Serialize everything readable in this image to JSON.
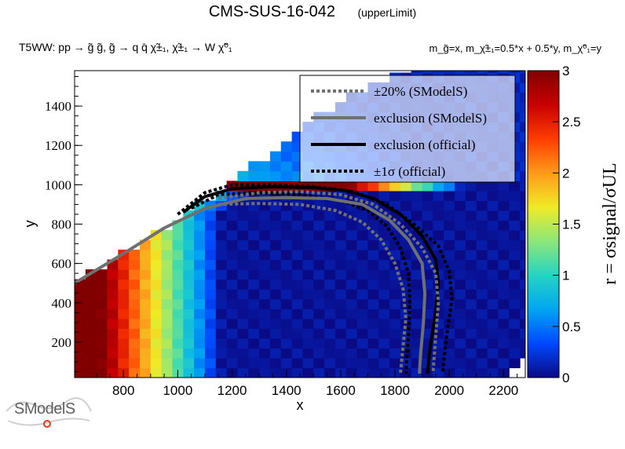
{
  "header": {
    "title": "CMS-SUS-16-042",
    "subtitle": "(upperLimit)",
    "process": "T5WW: pp  → g̃ g̃, g̃  → q q̄ χ̃±₁, χ̃±₁ → W χ̃⁰₁",
    "mass_config": "m_g̃=x, m_χ̃±₁=0.5*x + 0.5*y, m_χ̃⁰₁=y"
  },
  "logo": {
    "text": "SModelS"
  },
  "chart_data": {
    "type": "heatmap",
    "xlabel": "x",
    "ylabel": "y",
    "zlabel": "r = σsignal/σUL",
    "xlim": [
      620,
      2280
    ],
    "ylim": [
      20,
      1580
    ],
    "zlim": [
      0,
      3
    ],
    "xticks": [
      800,
      1000,
      1200,
      1400,
      1600,
      1800,
      2000,
      2200
    ],
    "yticks": [
      200,
      400,
      600,
      800,
      1000,
      1200,
      1400
    ],
    "zticks": [
      0,
      0.5,
      1,
      1.5,
      2,
      2.5,
      3
    ],
    "colorscale": [
      "#0a0a85",
      "#0048ff",
      "#00a6f2",
      "#26d4c2",
      "#8ce77a",
      "#f0ea26",
      "#ff9a1a",
      "#ff3c00",
      "#c80000",
      "#800000"
    ],
    "legend": {
      "placement": "top-right",
      "entries": [
        {
          "label": "±20% (SModelS)",
          "style": "dotted",
          "color": "#707070"
        },
        {
          "label": "exclusion (SModelS)",
          "style": "solid",
          "color": "#707070"
        },
        {
          "label": "exclusion (official)",
          "style": "solid",
          "color": "#000000"
        },
        {
          "label": "±1σ (official)",
          "style": "dotted",
          "color": "#000000"
        }
      ]
    },
    "grid": {
      "dx": 40,
      "dy": 50
    },
    "coverage": {
      "diagonal": [
        [
          620,
          500
        ],
        [
          1200,
          1000
        ],
        [
          1450,
          1300
        ],
        [
          1700,
          1500
        ],
        [
          1850,
          1580
        ]
      ],
      "xmax_by_y": [
        [
          20,
          2210
        ],
        [
          70,
          2250
        ],
        [
          120,
          2280
        ],
        [
          1580,
          2280
        ]
      ]
    },
    "contours": [
      {
        "name": "exclusion (official)",
        "style": "solid",
        "color": "#000000",
        "points": [
          [
            1020,
            860
          ],
          [
            1100,
            940
          ],
          [
            1200,
            980
          ],
          [
            1350,
            990
          ],
          [
            1500,
            985
          ],
          [
            1620,
            970
          ],
          [
            1720,
            930
          ],
          [
            1820,
            850
          ],
          [
            1900,
            740
          ],
          [
            1950,
            620
          ],
          [
            1960,
            500
          ],
          [
            1950,
            350
          ],
          [
            1930,
            180
          ],
          [
            1920,
            40
          ]
        ]
      },
      {
        "name": "+1σ (official)",
        "style": "dotted",
        "color": "#000000",
        "points": [
          [
            1000,
            850
          ],
          [
            1100,
            960
          ],
          [
            1200,
            1000
          ],
          [
            1350,
            1000
          ],
          [
            1500,
            990
          ],
          [
            1650,
            965
          ],
          [
            1770,
            900
          ],
          [
            1870,
            800
          ],
          [
            1960,
            690
          ],
          [
            2000,
            560
          ],
          [
            2010,
            420
          ],
          [
            1990,
            230
          ],
          [
            1975,
            40
          ]
        ]
      },
      {
        "name": "-1σ (official)",
        "style": "dotted",
        "color": "#000000",
        "points": [
          [
            1050,
            880
          ],
          [
            1150,
            950
          ],
          [
            1300,
            960
          ],
          [
            1450,
            950
          ],
          [
            1600,
            920
          ],
          [
            1700,
            870
          ],
          [
            1770,
            790
          ],
          [
            1820,
            680
          ],
          [
            1850,
            550
          ],
          [
            1855,
            400
          ],
          [
            1850,
            230
          ],
          [
            1840,
            40
          ]
        ]
      },
      {
        "name": "exclusion (SModelS)",
        "style": "solid",
        "color": "#707070",
        "points": [
          [
            620,
            500
          ],
          [
            800,
            650
          ],
          [
            950,
            780
          ],
          [
            1100,
            880
          ],
          [
            1250,
            930
          ],
          [
            1400,
            935
          ],
          [
            1550,
            930
          ],
          [
            1680,
            900
          ],
          [
            1780,
            820
          ],
          [
            1850,
            720
          ],
          [
            1900,
            600
          ],
          [
            1910,
            450
          ],
          [
            1905,
            300
          ],
          [
            1895,
            150
          ],
          [
            1890,
            40
          ]
        ]
      },
      {
        "name": "+20% (SModelS)",
        "style": "dotted",
        "color": "#707070",
        "points": [
          [
            1150,
            930
          ],
          [
            1300,
            960
          ],
          [
            1450,
            965
          ],
          [
            1600,
            950
          ],
          [
            1720,
            900
          ],
          [
            1820,
            800
          ],
          [
            1900,
            680
          ],
          [
            1950,
            550
          ],
          [
            1960,
            400
          ],
          [
            1950,
            230
          ],
          [
            1940,
            40
          ]
        ]
      },
      {
        "name": "-20% (SModelS)",
        "style": "dotted",
        "color": "#707070",
        "points": [
          [
            1150,
            900
          ],
          [
            1300,
            905
          ],
          [
            1450,
            900
          ],
          [
            1580,
            870
          ],
          [
            1680,
            810
          ],
          [
            1750,
            720
          ],
          [
            1800,
            600
          ],
          [
            1830,
            470
          ],
          [
            1840,
            320
          ],
          [
            1830,
            180
          ],
          [
            1820,
            40
          ]
        ]
      }
    ]
  }
}
